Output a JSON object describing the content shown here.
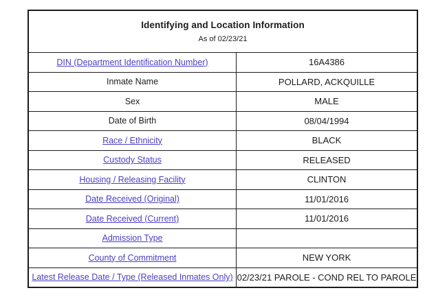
{
  "header": {
    "title": "Identifying and Location Information",
    "as_of": "As of 02/23/21"
  },
  "colors": {
    "link": "#4b3fc6",
    "border": "#1b1b1b",
    "text": "#1b1b1b",
    "background": "#ffffff"
  },
  "rows": [
    {
      "label": "DIN (Department Identification Number)",
      "value": "16A4386",
      "link": true
    },
    {
      "label": "Inmate Name",
      "value": "POLLARD, ACKQUILLE",
      "link": false
    },
    {
      "label": "Sex",
      "value": "MALE",
      "link": false
    },
    {
      "label": "Date of Birth",
      "value": "08/04/1994",
      "link": false
    },
    {
      "label": "Race / Ethnicity",
      "value": "BLACK",
      "link": true
    },
    {
      "label": "Custody Status",
      "value": "RELEASED",
      "link": true
    },
    {
      "label": "Housing / Releasing Facility",
      "value": "CLINTON",
      "link": true
    },
    {
      "label": "Date Received (Original)",
      "value": "11/01/2016",
      "link": true
    },
    {
      "label": "Date Received (Current)",
      "value": "11/01/2016",
      "link": true
    },
    {
      "label": "Admission Type",
      "value": "",
      "link": true
    },
    {
      "label": "County of Commitment",
      "value": "NEW YORK",
      "link": true
    },
    {
      "label": "Latest Release Date / Type (Released Inmates Only)",
      "value": "02/23/21 PAROLE - COND REL TO PAROLE",
      "link": true
    }
  ]
}
